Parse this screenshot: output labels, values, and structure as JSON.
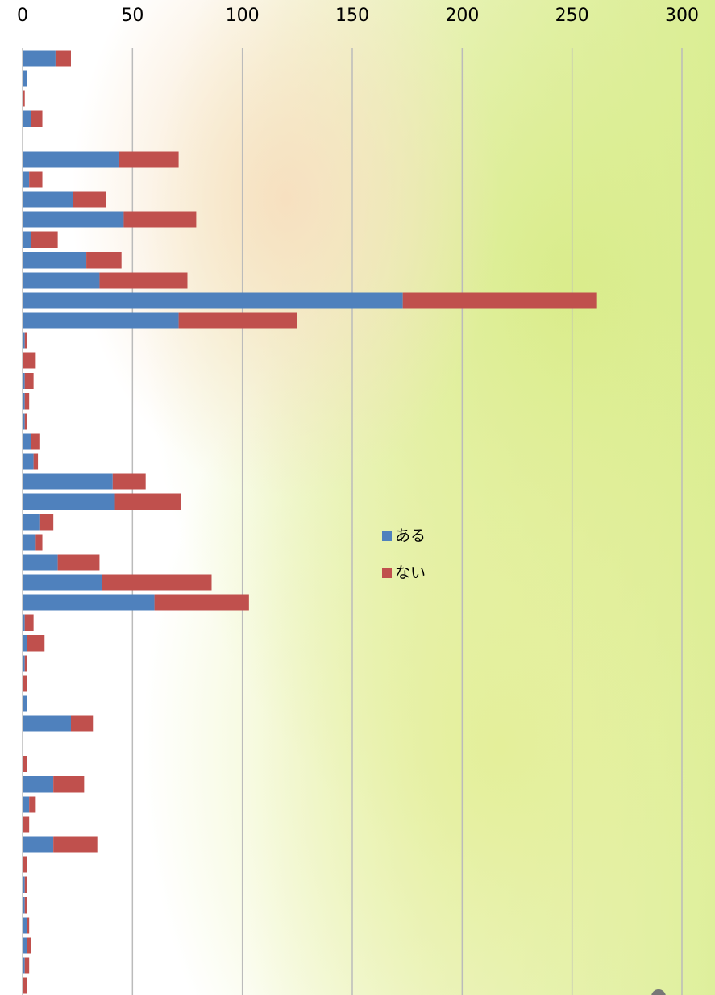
{
  "chart_data": {
    "type": "stacked_barh",
    "categories": [
      null,
      null,
      null,
      null,
      null,
      null,
      null,
      null,
      null,
      null,
      null,
      null,
      null,
      null,
      null,
      null,
      null,
      null,
      null,
      null,
      null,
      null,
      null,
      null,
      null,
      null,
      null,
      null,
      null,
      null,
      null,
      null,
      null,
      null,
      null,
      null,
      null,
      null,
      null,
      null,
      null,
      null,
      null,
      null,
      null,
      null,
      null
    ],
    "series": [
      {
        "name": "ある",
        "color": "#4f81bd",
        "values": [
          15,
          2,
          0,
          4,
          0,
          44,
          3,
          23,
          46,
          4,
          29,
          35,
          173,
          71,
          1,
          0,
          1,
          1,
          1,
          4,
          5,
          41,
          42,
          8,
          6,
          16,
          36,
          60,
          1,
          2,
          1,
          0,
          2,
          22,
          0,
          0,
          14,
          3,
          0,
          14,
          0,
          1,
          1,
          2,
          2,
          1,
          0
        ]
      },
      {
        "name": "ない",
        "color": "#c0504d",
        "values": [
          7,
          0,
          1,
          5,
          0,
          27,
          6,
          15,
          33,
          12,
          16,
          40,
          88,
          54,
          1,
          6,
          4,
          2,
          1,
          4,
          2,
          15,
          30,
          6,
          3,
          19,
          50,
          43,
          4,
          8,
          1,
          2,
          0,
          10,
          0,
          2,
          14,
          3,
          3,
          20,
          2,
          1,
          1,
          1,
          2,
          2,
          2
        ]
      }
    ],
    "xlim": [
      0,
      300
    ],
    "xticks": [
      0,
      50,
      100,
      150,
      200,
      250,
      300
    ],
    "grid": true,
    "legend": "center-right"
  }
}
